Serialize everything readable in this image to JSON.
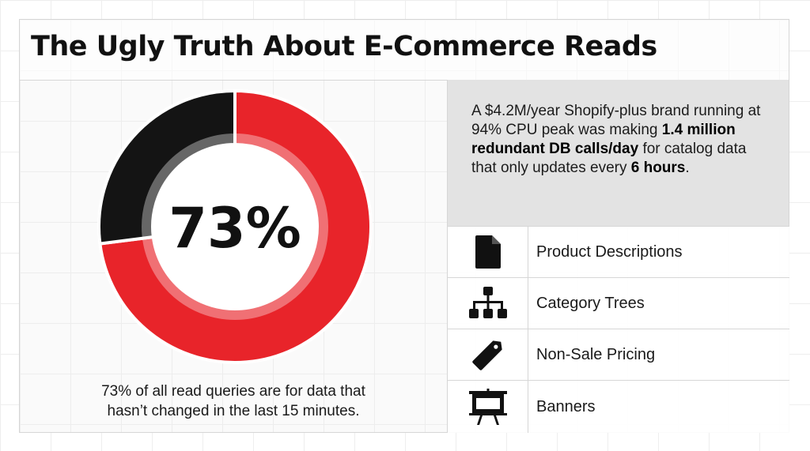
{
  "header": {
    "title": "The Ugly Truth About E-Commerce Reads"
  },
  "chart_data": {
    "type": "pie",
    "variant": "donut",
    "center_label": "73%",
    "slices": [
      {
        "value": 73,
        "color": "#e8242a"
      },
      {
        "value": 27,
        "color": "#141414"
      }
    ]
  },
  "caption": {
    "line1": "73% of all read queries are for data that",
    "line2": "hasn’t changed in the last 15 minutes."
  },
  "callout": {
    "t1": "A $4.2M/year Shopify-plus brand running at 94% CPU peak was making ",
    "b1": "1.4 million redundant DB calls/day",
    "t2": " for catalog data that only updates every ",
    "b2": "6 hours",
    "t3": "."
  },
  "items": [
    {
      "icon": "document-icon",
      "label": "Product Descriptions"
    },
    {
      "icon": "hierarchy-icon",
      "label": "Category Trees"
    },
    {
      "icon": "price-tag-icon",
      "label": "Non-Sale Pricing"
    },
    {
      "icon": "easel-banner-icon",
      "label": "Banners"
    }
  ],
  "colors": {
    "accent_red": "#e8242a",
    "dark": "#141414",
    "callout_bg": "#e3e3e3"
  }
}
